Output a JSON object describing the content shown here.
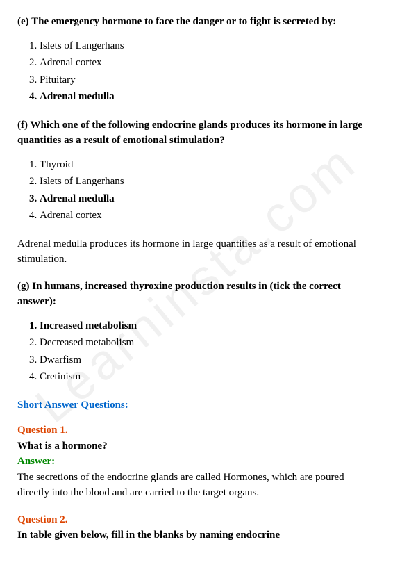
{
  "watermark": "Learninsta.com",
  "question_e": {
    "title": "(e) The emergency hormone to face the danger or to fight is secreted by:",
    "options": [
      "Islets of Langerhans",
      "Adrenal cortex",
      "Pituitary",
      "Adrenal medulla"
    ],
    "correct_index": 3
  },
  "question_f": {
    "title": "(f) Which one of the following endocrine glands produces its hormone in large quantities as a result of emotional stimulation?",
    "options": [
      "Thyroid",
      "Islets of Langerhans",
      "Adrenal medulla",
      "Adrenal cortex"
    ],
    "correct_index": 2,
    "explanation": "Adrenal medulla produces its hormone in large quantities as a result of emotional stimulation."
  },
  "question_g": {
    "title": "(g) In humans, increased thyroxine production results in (tick the correct answer):",
    "options": [
      "Increased metabolism",
      "Decreased metabolism",
      "Dwarfism",
      "Cretinism"
    ],
    "correct_index": 0
  },
  "section_header": "Short Answer Questions:",
  "qa1": {
    "question_label": "Question 1.",
    "question_text": "What is a hormone?",
    "answer_label": "Answer:",
    "answer_text": "The secretions of the endocrine glands are called Hormones, which are poured directly into the blood and are carried to the target organs."
  },
  "qa2": {
    "question_label": "Question 2.",
    "question_text": "In table given below, fill in the blanks by naming endocrine"
  },
  "colors": {
    "text": "#000000",
    "link_blue": "#0066cc",
    "question_orange": "#dd4400",
    "answer_green": "#008800",
    "background": "#ffffff",
    "watermark": "rgba(0,0,0,0.06)"
  }
}
